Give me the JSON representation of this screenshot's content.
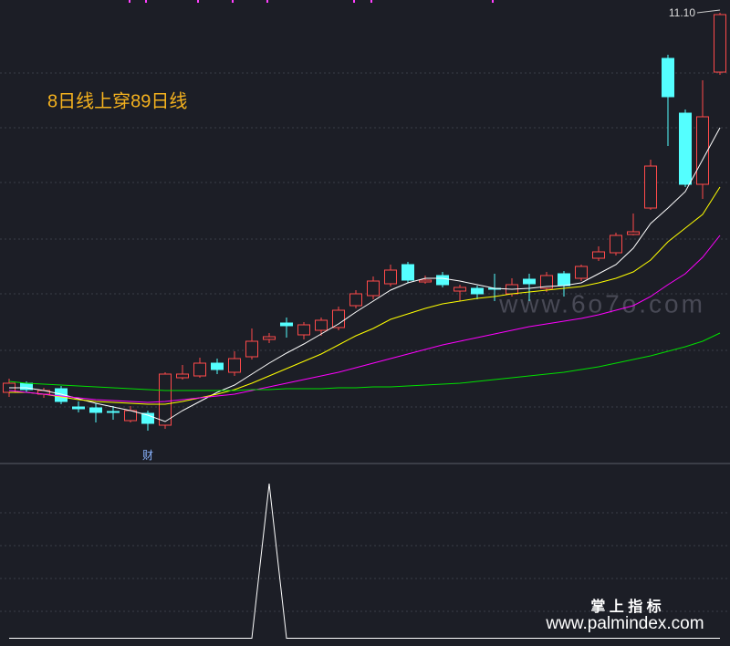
{
  "chart_data": [
    {
      "type": "candlestick",
      "annotation": "8日线上穿89日线",
      "ylim": [
        6.16,
        11.24
      ],
      "up_color": "#ff4a4a",
      "down_color": "#54ffff",
      "open": [
        6.94,
        7.04,
        6.92,
        6.98,
        6.78,
        6.77,
        6.73,
        6.63,
        6.71,
        6.58,
        7.1,
        7.12,
        7.26,
        7.16,
        7.33,
        7.52,
        7.7,
        7.57,
        7.62,
        7.65,
        7.89,
        8.0,
        8.13,
        8.34,
        8.15,
        8.22,
        8.05,
        8.08,
        8.08,
        8.02,
        8.18,
        8.08,
        8.24,
        8.19,
        8.41,
        8.47,
        8.67,
        8.96,
        10.6,
        10.0,
        9.22,
        10.45
      ],
      "high": [
        7.09,
        7.06,
        6.99,
        7.01,
        6.84,
        6.82,
        6.79,
        6.79,
        6.74,
        7.16,
        7.24,
        7.32,
        7.31,
        7.39,
        7.64,
        7.59,
        7.76,
        7.71,
        7.76,
        7.88,
        8.06,
        8.21,
        8.34,
        8.37,
        8.22,
        8.26,
        8.12,
        8.11,
        8.24,
        8.19,
        8.24,
        8.26,
        8.27,
        8.34,
        8.54,
        8.69,
        8.9,
        9.49,
        10.64,
        10.04,
        10.36,
        11.1
      ],
      "low": [
        6.89,
        6.94,
        6.88,
        6.81,
        6.72,
        6.61,
        6.64,
        6.61,
        6.52,
        6.54,
        7.08,
        7.1,
        7.14,
        7.12,
        7.3,
        7.48,
        7.54,
        7.52,
        7.56,
        7.62,
        7.86,
        7.96,
        8.1,
        8.14,
        8.13,
        8.09,
        7.94,
        7.96,
        7.94,
        7.99,
        7.94,
        8.04,
        7.99,
        8.16,
        8.38,
        8.44,
        8.66,
        8.94,
        9.64,
        9.19,
        9.06,
        10.42
      ],
      "close": [
        7.04,
        6.97,
        6.96,
        6.84,
        6.76,
        6.72,
        6.72,
        6.74,
        6.6,
        7.14,
        7.14,
        7.26,
        7.19,
        7.31,
        7.5,
        7.55,
        7.67,
        7.68,
        7.73,
        7.84,
        8.02,
        8.16,
        8.28,
        8.17,
        8.17,
        8.12,
        8.09,
        8.02,
        8.07,
        8.12,
        8.13,
        8.22,
        8.11,
        8.32,
        8.48,
        8.66,
        8.7,
        9.42,
        10.18,
        9.22,
        9.96,
        11.08
      ],
      "max_label": {
        "value": 11.1,
        "label": "11.10"
      },
      "events": [
        {
          "index": 8,
          "label": "财"
        }
      ],
      "series": [
        {
          "color": "#ffffff",
          "values": [
            6.99,
            6.99,
            6.96,
            6.92,
            6.87,
            6.82,
            6.78,
            6.74,
            6.69,
            6.62,
            6.74,
            6.84,
            6.94,
            7.02,
            7.14,
            7.26,
            7.37,
            7.47,
            7.58,
            7.69,
            7.82,
            7.94,
            8.06,
            8.14,
            8.19,
            8.19,
            8.16,
            8.12,
            8.08,
            8.07,
            8.08,
            8.1,
            8.11,
            8.14,
            8.24,
            8.34,
            8.52,
            8.79,
            8.96,
            9.14,
            9.49,
            9.84
          ]
        },
        {
          "color": "#ffff00",
          "values": [
            6.94,
            6.94,
            6.92,
            6.89,
            6.86,
            6.84,
            6.83,
            6.82,
            6.81,
            6.81,
            6.84,
            6.88,
            6.92,
            6.97,
            7.04,
            7.12,
            7.2,
            7.28,
            7.36,
            7.46,
            7.56,
            7.64,
            7.74,
            7.8,
            7.86,
            7.91,
            7.94,
            7.97,
            7.99,
            8.02,
            8.04,
            8.06,
            8.08,
            8.1,
            8.14,
            8.19,
            8.26,
            8.39,
            8.59,
            8.74,
            8.89,
            9.19
          ]
        },
        {
          "color": "#ff00ff",
          "values": [
            6.96,
            6.94,
            6.92,
            6.9,
            6.88,
            6.86,
            6.85,
            6.84,
            6.83,
            6.84,
            6.86,
            6.88,
            6.9,
            6.92,
            6.96,
            7.0,
            7.04,
            7.08,
            7.12,
            7.16,
            7.21,
            7.26,
            7.31,
            7.36,
            7.41,
            7.46,
            7.5,
            7.54,
            7.58,
            7.62,
            7.66,
            7.69,
            7.72,
            7.75,
            7.79,
            7.84,
            7.89,
            7.99,
            8.12,
            8.24,
            8.42,
            8.66
          ]
        },
        {
          "color": "#00e000",
          "values": [
            7.06,
            7.04,
            7.03,
            7.02,
            7.01,
            7.0,
            6.99,
            6.98,
            6.97,
            6.96,
            6.96,
            6.96,
            6.96,
            6.96,
            6.97,
            6.97,
            6.98,
            6.98,
            6.98,
            6.99,
            6.99,
            7.0,
            7.0,
            7.01,
            7.02,
            7.03,
            7.04,
            7.06,
            7.08,
            7.1,
            7.12,
            7.14,
            7.16,
            7.19,
            7.22,
            7.26,
            7.3,
            7.34,
            7.39,
            7.44,
            7.5,
            7.59
          ]
        }
      ]
    },
    {
      "type": "line",
      "ylim": [
        -0.05,
        1.13
      ],
      "series": [
        {
          "color": "#ffffff",
          "values": [
            0,
            0,
            0,
            0,
            0,
            0,
            0,
            0,
            0,
            0,
            0,
            0,
            0,
            0,
            0,
            1,
            0,
            0,
            0,
            0,
            0,
            0,
            0,
            0,
            0,
            0,
            0,
            0,
            0,
            0,
            0,
            0,
            0,
            0,
            0,
            0,
            0,
            0,
            0,
            0,
            0,
            0
          ]
        }
      ]
    }
  ],
  "watermarks": [
    "www.6o7o.com",
    "掌 上 指 标",
    "www.palmindex.com"
  ]
}
